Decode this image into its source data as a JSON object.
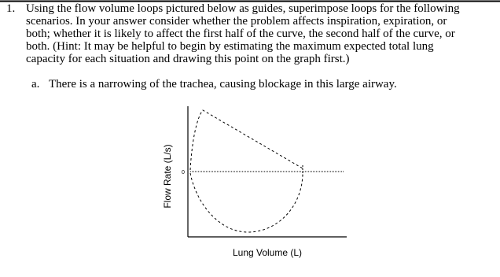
{
  "question": {
    "number": "1.",
    "lines": [
      "Using the flow volume loops pictured below as guides, superimpose loops for the following",
      "scenarios. In your answer consider whether the problem affects inspiration, expiration, or",
      "both; whether it is likely to affect the first half of the curve, the second half of the curve, or",
      "both. (Hint: It may be helpful to begin by estimating the maximum expected total lung",
      "capacity for each situation and drawing this point on the graph first.)"
    ]
  },
  "part_a": {
    "letter": "a.",
    "text": "There is a narrowing of the trachea, causing blockage in this large airway."
  },
  "diagram": {
    "y_label": "Flow Rate (L/s)",
    "x_label": "Lung Volume (L)",
    "zero_label": "0"
  }
}
